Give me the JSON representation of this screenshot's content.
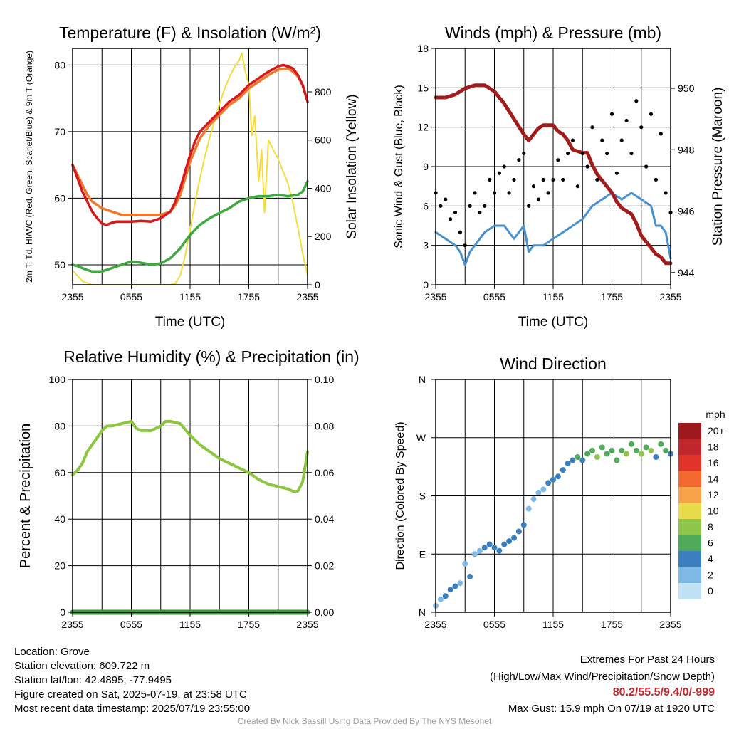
{
  "chart_data": [
    {
      "type": "line",
      "title": "Temperature (F) & Insolation (W/m²)",
      "xlabel": "Time (UTC)",
      "ylabel": "2m T, Td, HI/WC (Red, Green, Scarlet/Blue) & 9m T (Orange)",
      "ylabel_right": "Solar Insolation (Yellow)",
      "x_ticks": [
        "2355",
        "0555",
        "1155",
        "1755",
        "2355"
      ],
      "y_ticks": [
        "50",
        "60",
        "70",
        "80"
      ],
      "y2_ticks": [
        "0",
        "200",
        "400",
        "600",
        "800"
      ],
      "ylim": [
        47,
        82.5
      ],
      "y2lim": [
        0,
        980
      ],
      "x_range_hours": [
        0,
        24
      ],
      "grid": true,
      "series": [
        {
          "color": "#d7191c",
          "axis": "left",
          "x": [
            0,
            0.5,
            1,
            1.5,
            2,
            2.5,
            3,
            3.5,
            4,
            4.5,
            5,
            6,
            7,
            8,
            9,
            10,
            10.5,
            11,
            11.5,
            12,
            12.5,
            13,
            14,
            15,
            16,
            17,
            18,
            19,
            20,
            21,
            21.5,
            22,
            22.5,
            23,
            23.5,
            24
          ],
          "values": [
            65,
            63,
            61,
            59.5,
            58,
            57,
            56.2,
            56,
            56.3,
            56.5,
            56.5,
            56.5,
            56.6,
            56.5,
            57,
            58,
            59.5,
            61.5,
            64,
            66.5,
            68.5,
            70,
            71.5,
            73,
            74.5,
            75.5,
            77,
            78,
            79,
            79.8,
            80,
            79.8,
            79.5,
            78.5,
            77,
            74.5
          ]
        },
        {
          "color": "#f0782d",
          "axis": "left",
          "x": [
            0,
            0.5,
            1,
            1.5,
            2,
            2.5,
            3,
            4,
            5,
            6,
            7,
            8,
            9,
            10,
            10.5,
            11,
            11.5,
            12,
            13,
            14,
            15,
            16,
            17,
            18,
            19,
            20,
            21,
            22,
            22.5,
            23,
            23.5,
            24
          ],
          "values": [
            65,
            63.5,
            62,
            60.5,
            59.5,
            59,
            58.5,
            58,
            57.5,
            57.5,
            57.5,
            57.5,
            57.5,
            58,
            59,
            60.5,
            63,
            65.5,
            69,
            71,
            72.5,
            74,
            75,
            76.5,
            77.5,
            78.5,
            79.3,
            79.5,
            79,
            78.3,
            77,
            74.5
          ]
        },
        {
          "color": "#3daa3d",
          "axis": "left",
          "x": [
            0,
            0.5,
            1,
            1.5,
            2,
            3,
            4,
            5,
            6,
            7,
            8,
            9,
            10,
            11,
            12,
            13,
            14,
            15,
            16,
            17,
            18,
            19,
            20,
            21,
            22,
            23,
            23.5,
            24
          ],
          "values": [
            50,
            49.8,
            49.5,
            49.2,
            49,
            49,
            49.5,
            50,
            50.5,
            50.3,
            50,
            50.2,
            51,
            52.5,
            54.5,
            56,
            57,
            57.8,
            58.5,
            59.5,
            60,
            60.3,
            60.3,
            60.5,
            60.3,
            60.5,
            61,
            62.5
          ]
        },
        {
          "color": "#f5dc3c",
          "axis": "right",
          "x": [
            0,
            1,
            2,
            3,
            4,
            5,
            6,
            7,
            8,
            9,
            10,
            10.5,
            11,
            11.5,
            12,
            12.5,
            13,
            13.5,
            14,
            14.5,
            15,
            15.5,
            16,
            16.5,
            17,
            17.3,
            17.6,
            18,
            18.3,
            18.6,
            19,
            19.3,
            19.6,
            20,
            20.5,
            21,
            21.5,
            22,
            22.5,
            23,
            23.5,
            24
          ],
          "values": [
            60,
            15,
            0,
            0,
            0,
            0,
            0,
            0,
            0,
            0,
            0,
            5,
            40,
            120,
            230,
            340,
            440,
            530,
            610,
            680,
            750,
            810,
            860,
            900,
            930,
            960,
            890,
            830,
            620,
            700,
            430,
            560,
            300,
            600,
            560,
            520,
            470,
            420,
            340,
            240,
            130,
            40
          ]
        }
      ]
    },
    {
      "type": "line",
      "title": "Winds (mph) & Pressure (mb)",
      "xlabel": "Time (UTC)",
      "ylabel": "Sonic Wind & Gust (Blue, Black)",
      "ylabel_right": "Station Pressure (Maroon)",
      "x_ticks": [
        "2355",
        "0555",
        "1155",
        "1755",
        "2355"
      ],
      "y_ticks": [
        "0",
        "3",
        "6",
        "9",
        "12",
        "15",
        "18"
      ],
      "y2_ticks": [
        "944",
        "946",
        "948",
        "950"
      ],
      "ylim": [
        0,
        18
      ],
      "y2lim": [
        943.6,
        951.3
      ],
      "x_range_hours": [
        0,
        24
      ],
      "grid": true,
      "series": [
        {
          "color": "#4a90cf",
          "axis": "left",
          "type": "line",
          "x": [
            0,
            1,
            2,
            2.5,
            3,
            3.5,
            4,
            5,
            6,
            7,
            8,
            9,
            9.5,
            10,
            11,
            12,
            13,
            14,
            15,
            16,
            17,
            18,
            19,
            20,
            21,
            22,
            22.5,
            23,
            23.5,
            24
          ],
          "values": [
            4,
            3.5,
            3,
            2.5,
            1.5,
            2.5,
            3,
            4,
            4.5,
            4.5,
            3.5,
            4.5,
            2.5,
            3,
            3,
            3.5,
            4,
            4.5,
            5,
            6,
            6.5,
            7,
            6.5,
            7,
            6.5,
            6,
            4.5,
            4.5,
            4,
            2
          ]
        },
        {
          "color": "#000000",
          "axis": "left",
          "type": "scatter",
          "x": [
            0,
            0.5,
            1,
            1.5,
            2,
            2.5,
            3,
            3.5,
            4,
            4.5,
            5,
            5.5,
            6,
            6.5,
            7,
            7.5,
            8,
            8.5,
            9,
            9.5,
            10,
            10.5,
            11,
            11.5,
            12,
            12.5,
            13,
            13.5,
            14,
            14.5,
            15,
            15.5,
            16,
            16.5,
            17,
            17.5,
            18,
            18.5,
            19,
            19.5,
            20,
            20.5,
            21,
            21.5,
            22,
            22.5,
            23,
            23.5,
            24
          ],
          "values": [
            7,
            6,
            6.5,
            5,
            5.5,
            4,
            3,
            6,
            7,
            5.5,
            6,
            8,
            7,
            8.5,
            9,
            7,
            8,
            9.5,
            10,
            6,
            7.5,
            6.5,
            8,
            7,
            8,
            9.5,
            8,
            10,
            11,
            7.5,
            10,
            9,
            12,
            8,
            11,
            10,
            13,
            8.5,
            11,
            12.5,
            10,
            14,
            12,
            9,
            13,
            8,
            11.5,
            7,
            5.5
          ]
        },
        {
          "color": "#a31c1c",
          "axis": "right",
          "type": "line",
          "x": [
            0,
            1,
            2,
            3,
            4,
            5,
            6,
            7,
            8,
            9,
            9.5,
            10,
            10.5,
            11,
            12,
            12.5,
            13,
            13.5,
            14,
            15,
            15.5,
            16,
            16.5,
            17,
            17.5,
            18,
            18.5,
            19,
            19.5,
            20,
            20.5,
            21,
            21.5,
            22,
            22.5,
            23,
            23.5,
            24
          ],
          "values": [
            949.7,
            949.7,
            949.8,
            950,
            950.1,
            950.1,
            949.9,
            949.5,
            949,
            948.5,
            948.3,
            948.5,
            948.7,
            948.8,
            948.8,
            948.6,
            948.5,
            948.3,
            948,
            947.9,
            947.9,
            947.5,
            947.2,
            947,
            946.8,
            946.6,
            946.3,
            946.1,
            946,
            945.9,
            945.6,
            945.2,
            945,
            944.8,
            944.6,
            944.5,
            944.3,
            944.3
          ]
        }
      ]
    },
    {
      "type": "line",
      "title": "Relative Humidity (%) & Precipitation (in)",
      "xlabel": "",
      "ylabel": "Percent & Precipitation",
      "x_ticks": [
        "2355",
        "0555",
        "1155",
        "1755",
        "2355"
      ],
      "y_ticks": [
        "0",
        "20",
        "40",
        "60",
        "80",
        "100"
      ],
      "y2_ticks": [
        "0.00",
        "0.02",
        "0.04",
        "0.06",
        "0.08",
        "0.10"
      ],
      "ylim": [
        0,
        100
      ],
      "y2lim": [
        0,
        0.1
      ],
      "x_range_hours": [
        0,
        24
      ],
      "grid": true,
      "series": [
        {
          "color": "#8cc63f",
          "axis": "left",
          "x": [
            0,
            0.5,
            1,
            1.5,
            2,
            2.5,
            3,
            3.5,
            4,
            5,
            6,
            6.5,
            7,
            8,
            9,
            9.5,
            10,
            11,
            12,
            13,
            14,
            15,
            16,
            17,
            18,
            19,
            20,
            21,
            22,
            22.5,
            23,
            23.5,
            24
          ],
          "values": [
            59,
            61,
            64,
            69,
            72,
            75,
            78,
            80,
            80,
            81,
            82,
            79,
            78,
            78,
            80,
            82,
            82,
            81,
            76,
            72,
            69,
            66,
            64,
            62,
            60,
            57,
            55,
            54,
            53,
            52,
            52,
            56,
            69
          ]
        },
        {
          "color": "#3a9a3a",
          "axis": "right",
          "x": [
            0,
            24
          ],
          "values": [
            0,
            0
          ]
        }
      ]
    },
    {
      "type": "scatter",
      "title": "Wind Direction",
      "xlabel": "",
      "ylabel": "Direction (Colored By Speed)",
      "x_ticks": [
        "2355",
        "0555",
        "1155",
        "1755",
        "2355"
      ],
      "y_ticks": [
        "N",
        "E",
        "S",
        "W",
        "N"
      ],
      "ylim": [
        0,
        360
      ],
      "x_range_hours": [
        0,
        24
      ],
      "grid": true,
      "colorbar": {
        "title": "mph",
        "labels": [
          "20+",
          "18",
          "16",
          "14",
          "12",
          "10",
          "8",
          "6",
          "4",
          "2",
          "0"
        ],
        "colors": [
          "#9c1a1d",
          "#c0282d",
          "#e0342a",
          "#f26a2f",
          "#f8a24a",
          "#e8dc4c",
          "#8dc64a",
          "#4faa5a",
          "#3c7fbf",
          "#7fb9e5",
          "#bfe3f5"
        ]
      },
      "x": [
        0,
        0.5,
        1,
        1.5,
        2,
        2.5,
        3,
        3.5,
        4,
        4.5,
        5,
        5.5,
        6,
        6.5,
        7,
        7.5,
        8,
        8.5,
        9,
        9.5,
        10,
        10.5,
        11,
        11.5,
        12,
        12.5,
        13,
        13.5,
        14,
        14.5,
        15,
        15.5,
        16,
        16.5,
        17,
        17.5,
        18,
        18.5,
        19,
        19.5,
        20,
        20.5,
        21,
        21.5,
        22,
        22.5,
        23,
        23.5,
        24
      ],
      "values": [
        10,
        20,
        25,
        35,
        40,
        45,
        75,
        55,
        90,
        95,
        100,
        105,
        100,
        95,
        105,
        110,
        115,
        125,
        135,
        160,
        175,
        185,
        190,
        200,
        205,
        210,
        220,
        230,
        235,
        240,
        235,
        245,
        250,
        240,
        255,
        245,
        250,
        235,
        250,
        245,
        260,
        250,
        245,
        255,
        250,
        240,
        260,
        250,
        245
      ],
      "speeds": [
        2,
        2,
        3,
        3,
        3,
        2,
        1,
        3,
        2,
        2,
        3,
        3,
        3,
        3,
        4,
        4,
        4,
        4,
        4,
        2,
        2,
        2,
        2,
        4,
        4,
        4,
        4,
        4,
        4,
        5,
        4,
        6,
        6,
        7,
        5,
        6,
        5,
        6,
        6,
        7,
        6,
        5,
        7,
        6,
        7,
        4,
        6,
        5,
        4
      ]
    }
  ],
  "footer": {
    "location": "Location: Grove",
    "elevation": "Station elevation: 609.722 m",
    "latlon": "Station lat/lon: 42.4895; -77.9495",
    "created": "Figure created on Sat, 2025-07-19, at 23:58 UTC",
    "recent": "Most recent data timestamp: 2025/07/19 23:55:00",
    "extremes_title": "Extremes For Past 24 Hours",
    "extremes_desc": "(High/Low/Max Wind/Precipitation/Snow Depth)",
    "extremes_values": "80.2/55.5/9.4/0/-999",
    "max_gust": "Max Gust: 15.9 mph On 07/19 at 1920 UTC",
    "credit": "Created By Nick Bassill Using Data Provided By The NYS Mesonet"
  }
}
